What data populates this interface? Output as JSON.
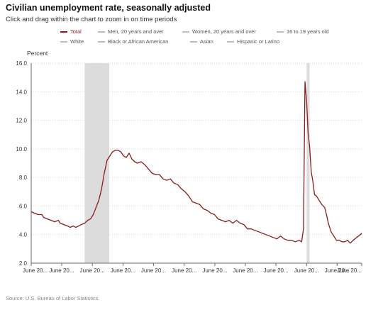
{
  "header": {
    "title": "Civilian unemployment rate, seasonally adjusted",
    "subtitle": "Click and drag within the chart to zoom in on time periods"
  },
  "legend": {
    "items": [
      {
        "label": "Total",
        "active": true
      },
      {
        "label": "Men, 20 years and over",
        "active": false
      },
      {
        "label": "Women, 20 years and over",
        "active": false
      },
      {
        "label": "16 to 19 years old",
        "active": false
      },
      {
        "label": "White",
        "active": false
      },
      {
        "label": "Black or African American",
        "active": false
      },
      {
        "label": "Asian",
        "active": false
      },
      {
        "label": "Hispanic or Latino",
        "active": false
      }
    ]
  },
  "source": "Source: U.S. Bureau of Labor Statistics.",
  "colors": {
    "series": "#8b1a1a",
    "inactive_legend": "#bdbdbd",
    "recession": "#dcdcdc",
    "grid": "#d6d6d6"
  },
  "chart_data": {
    "type": "line",
    "ylabel": "Percent",
    "ylim": [
      2.0,
      16.0
    ],
    "yticks": [
      "2.0",
      "4.0",
      "6.0",
      "8.0",
      "10.0",
      "12.0",
      "14.0",
      "16.0"
    ],
    "xlim": [
      2005.42,
      2023.42
    ],
    "xticks": [
      {
        "x": 2005.42,
        "label": "June 20..."
      },
      {
        "x": 2007.08,
        "label": "June 20..."
      },
      {
        "x": 2008.75,
        "label": "June 20..."
      },
      {
        "x": 2010.42,
        "label": "June 20..."
      },
      {
        "x": 2012.08,
        "label": "June 20..."
      },
      {
        "x": 2013.75,
        "label": "June 20..."
      },
      {
        "x": 2015.42,
        "label": "June 20..."
      },
      {
        "x": 2017.08,
        "label": "June 20..."
      },
      {
        "x": 2018.75,
        "label": "June 20..."
      },
      {
        "x": 2020.42,
        "label": "June 20..."
      },
      {
        "x": 2022.08,
        "label": "June 20..."
      },
      {
        "x": 2023.42,
        "label": "June 20..."
      }
    ],
    "recessions": [
      [
        2008.33,
        2009.67
      ],
      [
        2020.42,
        2020.58
      ]
    ],
    "grid": true,
    "series": [
      {
        "color": "#8b1a1a",
        "points": [
          [
            2005.42,
            5.6
          ],
          [
            2005.6,
            5.5
          ],
          [
            2005.8,
            5.4
          ],
          [
            2006.0,
            5.4
          ],
          [
            2006.1,
            5.2
          ],
          [
            2006.3,
            5.1
          ],
          [
            2006.5,
            5.0
          ],
          [
            2006.7,
            4.9
          ],
          [
            2006.9,
            5.0
          ],
          [
            2007.0,
            4.8
          ],
          [
            2007.2,
            4.7
          ],
          [
            2007.4,
            4.6
          ],
          [
            2007.55,
            4.5
          ],
          [
            2007.7,
            4.6
          ],
          [
            2007.85,
            4.5
          ],
          [
            2008.0,
            4.6
          ],
          [
            2008.15,
            4.7
          ],
          [
            2008.33,
            4.8
          ],
          [
            2008.5,
            5.0
          ],
          [
            2008.65,
            5.1
          ],
          [
            2008.8,
            5.4
          ],
          [
            2008.95,
            5.9
          ],
          [
            2009.1,
            6.4
          ],
          [
            2009.25,
            7.2
          ],
          [
            2009.4,
            8.3
          ],
          [
            2009.55,
            9.2
          ],
          [
            2009.7,
            9.5
          ],
          [
            2009.85,
            9.8
          ],
          [
            2010.0,
            9.9
          ],
          [
            2010.15,
            9.9
          ],
          [
            2010.3,
            9.8
          ],
          [
            2010.45,
            9.5
          ],
          [
            2010.6,
            9.4
          ],
          [
            2010.75,
            9.7
          ],
          [
            2010.9,
            9.3
          ],
          [
            2011.05,
            9.1
          ],
          [
            2011.2,
            9.0
          ],
          [
            2011.4,
            9.1
          ],
          [
            2011.6,
            8.9
          ],
          [
            2011.8,
            8.6
          ],
          [
            2012.0,
            8.3
          ],
          [
            2012.2,
            8.2
          ],
          [
            2012.4,
            8.2
          ],
          [
            2012.6,
            7.9
          ],
          [
            2012.8,
            7.8
          ],
          [
            2013.0,
            7.9
          ],
          [
            2013.2,
            7.6
          ],
          [
            2013.4,
            7.5
          ],
          [
            2013.6,
            7.2
          ],
          [
            2013.8,
            7.0
          ],
          [
            2014.0,
            6.7
          ],
          [
            2014.2,
            6.3
          ],
          [
            2014.4,
            6.2
          ],
          [
            2014.6,
            6.1
          ],
          [
            2014.8,
            5.8
          ],
          [
            2015.0,
            5.7
          ],
          [
            2015.2,
            5.5
          ],
          [
            2015.4,
            5.4
          ],
          [
            2015.6,
            5.1
          ],
          [
            2015.8,
            5.0
          ],
          [
            2016.0,
            4.9
          ],
          [
            2016.2,
            5.0
          ],
          [
            2016.4,
            4.8
          ],
          [
            2016.6,
            5.0
          ],
          [
            2016.8,
            4.8
          ],
          [
            2017.0,
            4.7
          ],
          [
            2017.2,
            4.4
          ],
          [
            2017.4,
            4.4
          ],
          [
            2017.6,
            4.3
          ],
          [
            2017.8,
            4.2
          ],
          [
            2018.0,
            4.1
          ],
          [
            2018.2,
            4.0
          ],
          [
            2018.4,
            3.9
          ],
          [
            2018.6,
            3.8
          ],
          [
            2018.8,
            3.7
          ],
          [
            2019.0,
            3.9
          ],
          [
            2019.2,
            3.7
          ],
          [
            2019.4,
            3.6
          ],
          [
            2019.6,
            3.6
          ],
          [
            2019.8,
            3.5
          ],
          [
            2020.0,
            3.6
          ],
          [
            2020.15,
            3.5
          ],
          [
            2020.25,
            4.4
          ],
          [
            2020.33,
            14.7
          ],
          [
            2020.42,
            13.3
          ],
          [
            2020.5,
            11.1
          ],
          [
            2020.58,
            10.2
          ],
          [
            2020.67,
            8.4
          ],
          [
            2020.75,
            7.8
          ],
          [
            2020.85,
            6.8
          ],
          [
            2020.95,
            6.7
          ],
          [
            2021.1,
            6.4
          ],
          [
            2021.25,
            6.1
          ],
          [
            2021.4,
            5.9
          ],
          [
            2021.5,
            5.4
          ],
          [
            2021.6,
            4.8
          ],
          [
            2021.75,
            4.2
          ],
          [
            2021.9,
            3.9
          ],
          [
            2022.05,
            3.6
          ],
          [
            2022.2,
            3.6
          ],
          [
            2022.35,
            3.5
          ],
          [
            2022.5,
            3.5
          ],
          [
            2022.65,
            3.6
          ],
          [
            2022.8,
            3.4
          ],
          [
            2022.95,
            3.6
          ],
          [
            2023.05,
            3.7
          ],
          [
            2023.15,
            3.8
          ],
          [
            2023.25,
            3.9
          ],
          [
            2023.35,
            4.0
          ],
          [
            2023.42,
            4.1
          ]
        ]
      }
    ]
  }
}
